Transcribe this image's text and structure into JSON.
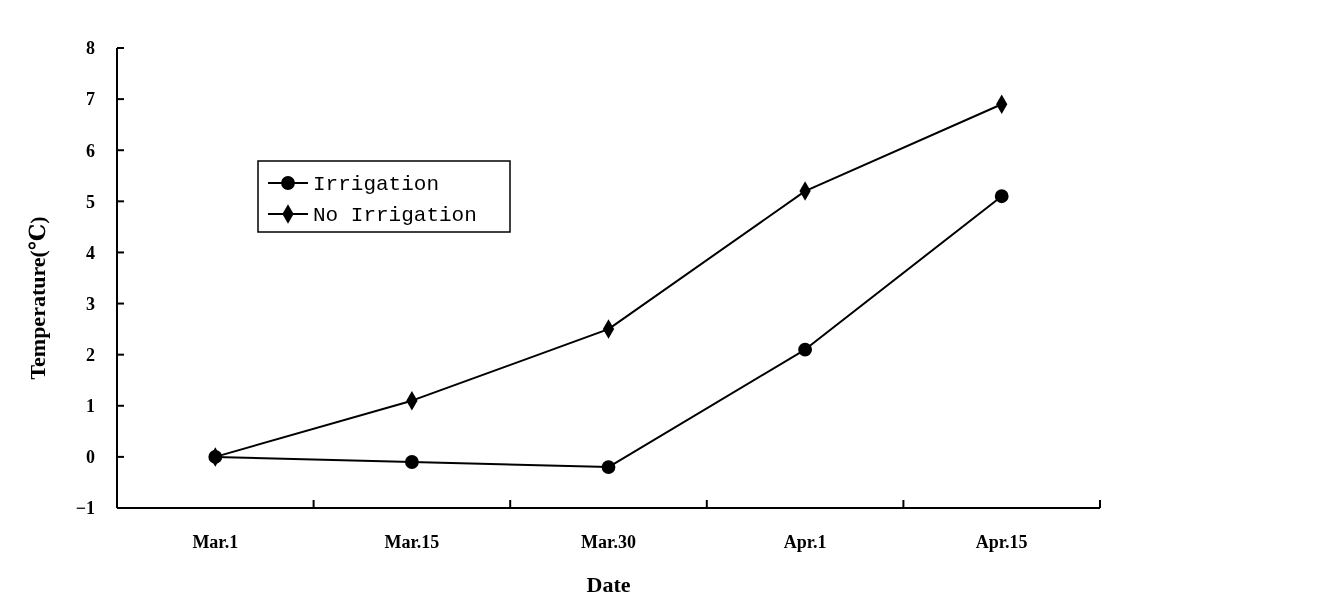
{
  "chart_data": {
    "type": "line",
    "xlabel": "Date",
    "ylabel": "Temperature(℃)",
    "categories": [
      "Mar.1",
      "Mar.15",
      "Mar.30",
      "Apr.1",
      "Apr.15"
    ],
    "series": [
      {
        "name": "Irrigation",
        "color": "#000000",
        "marker": "circle",
        "values": [
          0,
          -0.1,
          -0.2,
          2.1,
          5.1
        ]
      },
      {
        "name": "No Irrigation",
        "color": "#000000",
        "marker": "diamond",
        "values": [
          0,
          1.1,
          2.5,
          5.2,
          6.9
        ]
      }
    ],
    "ylim": [
      -1,
      8
    ],
    "yticks": [
      {
        "value": -1,
        "label": "−1"
      },
      0,
      1,
      2,
      3,
      4,
      5,
      6,
      7,
      8
    ],
    "grid": false,
    "legend": "top left",
    "line_style": "solid"
  }
}
